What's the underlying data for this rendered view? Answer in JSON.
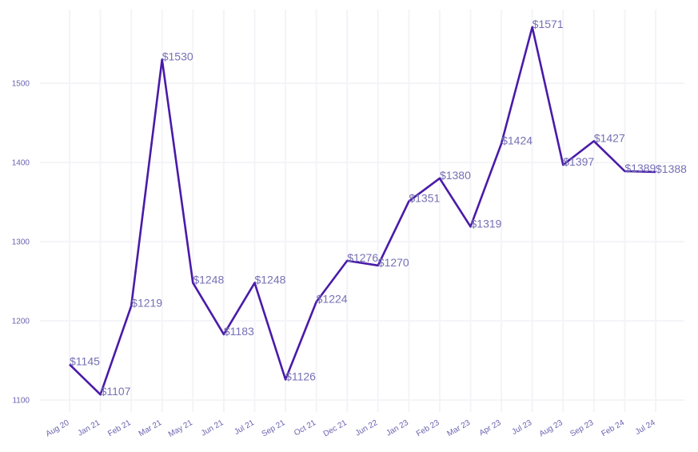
{
  "chart_data": {
    "type": "line",
    "title": "",
    "xlabel": "",
    "ylabel": "",
    "categories": [
      "Aug 20",
      "Jan 21",
      "Feb 21",
      "Mar 21",
      "May 21",
      "Jun 21",
      "Jul 21",
      "Sep 21",
      "Oct 21",
      "Dec 21",
      "Jun 22",
      "Jan 23",
      "Feb 23",
      "Mar 23",
      "Apr 23",
      "Jul 23",
      "Aug 23",
      "Sep 23",
      "Feb 24",
      "Jul 24"
    ],
    "values": [
      1145,
      1107,
      1219,
      1530,
      1248,
      1183,
      1248,
      1126,
      1224,
      1276,
      1270,
      1351,
      1380,
      1319,
      1424,
      1571,
      1397,
      1427,
      1389,
      1388
    ],
    "data_labels": [
      "$1145",
      "$1107",
      "$1219",
      "$1530",
      "$1248",
      "$1183",
      "$1248",
      "$1126",
      "$1224",
      "$1276",
      "$1270",
      "$1351",
      "$1380",
      "$1319",
      "$1424",
      "$1571",
      "$1397",
      "$1427",
      "$1389",
      "$1388"
    ],
    "yticks": [
      1100,
      1200,
      1300,
      1400,
      1500
    ],
    "ylim": [
      1090,
      1585
    ],
    "grid": true,
    "colors": {
      "line": "#4a1aa8",
      "label": "#7570b3",
      "tick": "#6a63b0",
      "grid": "#f4f4f8"
    }
  }
}
